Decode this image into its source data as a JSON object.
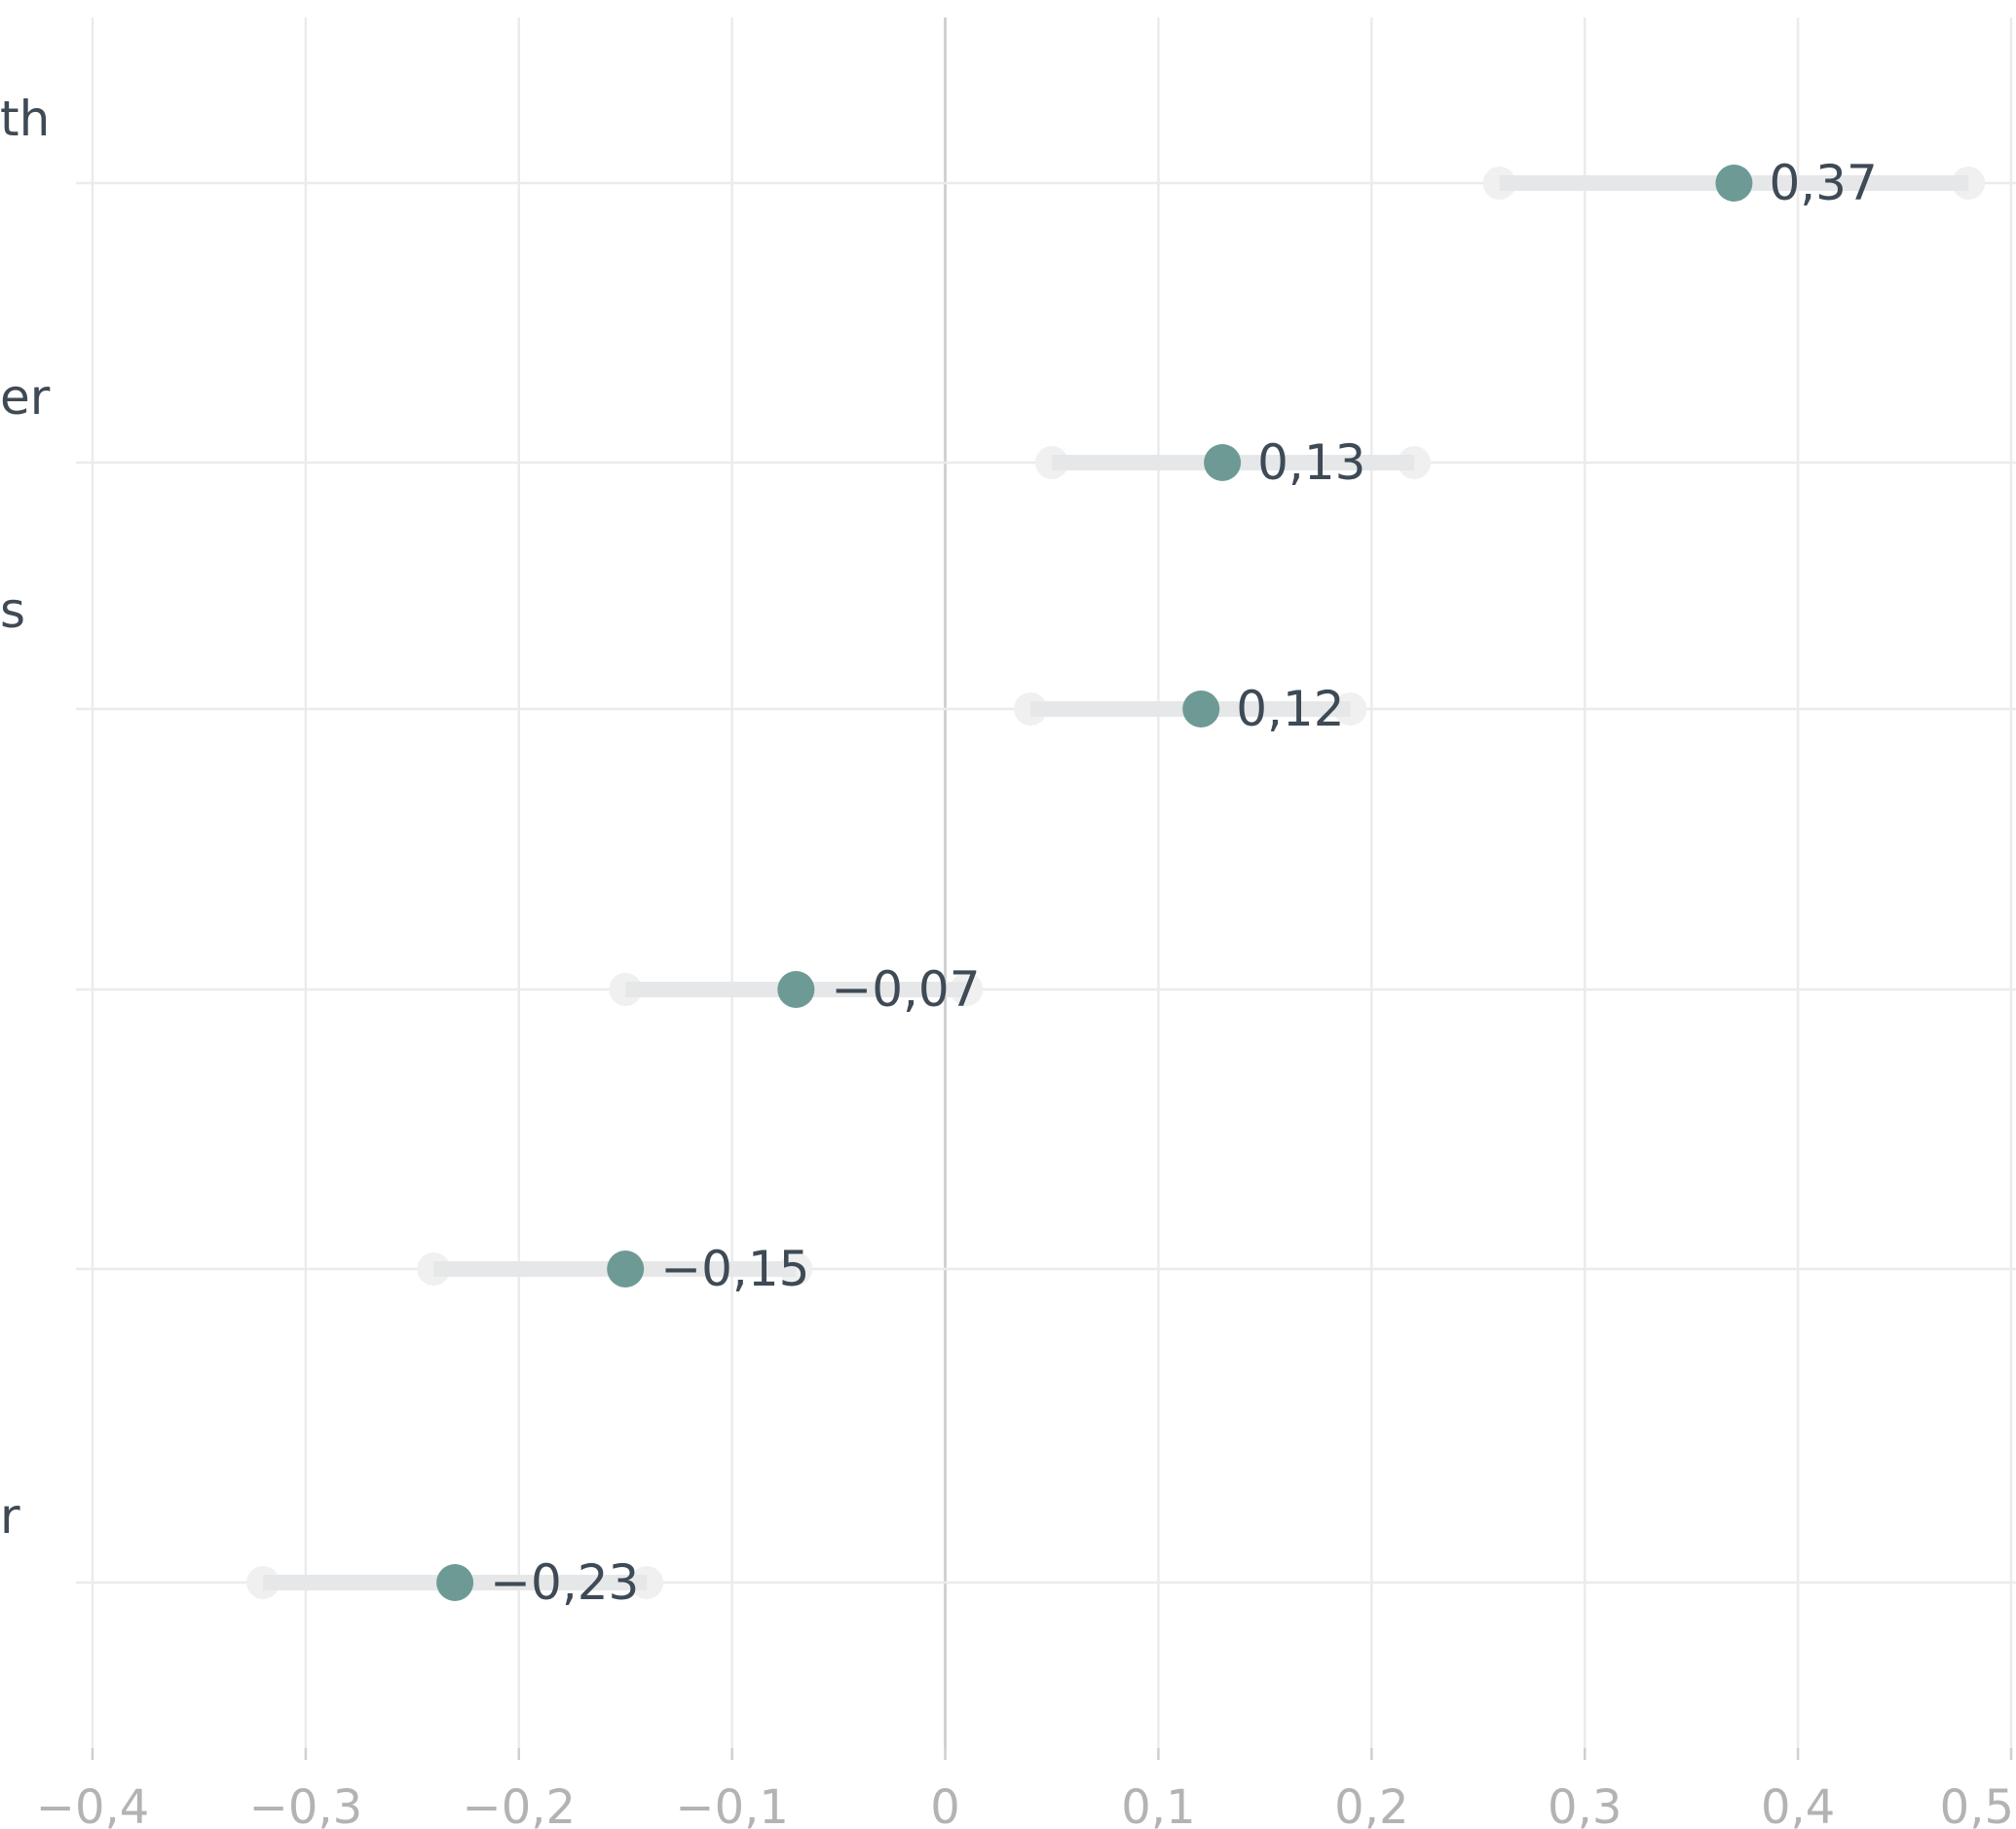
{
  "chart_data": {
    "type": "scatter",
    "subtype": "dot-with-confidence-interval",
    "title": "",
    "xlabel": "",
    "ylabel": "",
    "xlim": [
      -0.4,
      0.5
    ],
    "x_ticks": [
      -0.4,
      -0.3,
      -0.2,
      -0.1,
      0,
      0.1,
      0.2,
      0.3,
      0.4,
      0.5
    ],
    "x_tick_labels": [
      "−0,4",
      "−0,3",
      "−0,2",
      "−0,1",
      "0",
      "0,1",
      "0,2",
      "0,3",
      "0,4",
      "0,5"
    ],
    "grid": true,
    "colors": {
      "point": "#6e9a95",
      "interval": "#e6e7e8",
      "grid": "#ebebeb",
      "text": "#3e4a55",
      "tick_text": "#b3b3b3"
    },
    "rows": [
      {
        "label_fragment": "th",
        "value": 0.37,
        "low": 0.26,
        "high": 0.48,
        "value_label": "0,37"
      },
      {
        "label_fragment": "er",
        "value": 0.13,
        "low": 0.05,
        "high": 0.22,
        "value_label": "0,13"
      },
      {
        "label_fragment": "s",
        "value": 0.12,
        "low": 0.04,
        "high": 0.19,
        "value_label": "0,12"
      },
      {
        "label_fragment": "",
        "value": -0.07,
        "low": -0.15,
        "high": 0.01,
        "value_label": "−0,07"
      },
      {
        "label_fragment": "",
        "value": -0.15,
        "low": -0.24,
        "high": -0.07,
        "value_label": "−0,15"
      },
      {
        "label_fragment": "r",
        "value": -0.23,
        "low": -0.32,
        "high": -0.14,
        "value_label": "−0,23"
      }
    ]
  }
}
